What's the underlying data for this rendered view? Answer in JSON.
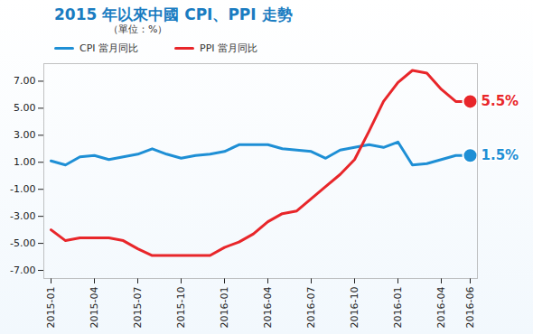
{
  "chart_data": {
    "type": "line",
    "title": "2015 年以來中國 CPI、PPI 走勢",
    "subtitle": "（單位：%）",
    "categories": [
      "2015-01",
      null,
      null,
      "2015-04",
      null,
      null,
      "2015-07",
      null,
      null,
      "2015-10",
      null,
      null,
      "2016-01",
      null,
      null,
      "2016-04",
      null,
      null,
      "2016-07",
      null,
      null,
      "2016-10",
      null,
      null,
      "2016-01",
      null,
      null,
      "2016-04",
      null,
      "2016-06"
    ],
    "series": [
      {
        "name": "CPI 當月同比",
        "color": "#1e8fd5",
        "values": [
          1.1,
          0.8,
          1.4,
          1.5,
          1.2,
          1.4,
          1.6,
          2.0,
          1.6,
          1.3,
          1.5,
          1.6,
          1.8,
          2.3,
          2.3,
          2.3,
          2.0,
          1.9,
          1.8,
          1.3,
          1.9,
          2.1,
          2.3,
          2.1,
          2.5,
          0.8,
          0.9,
          1.2,
          1.5,
          1.5
        ]
      },
      {
        "name": "PPI 當月同比",
        "color": "#e8262a",
        "values": [
          -4.0,
          -4.8,
          -4.6,
          -4.6,
          -4.6,
          -4.8,
          -5.4,
          -5.9,
          -5.9,
          -5.9,
          -5.9,
          -5.9,
          -5.3,
          -4.9,
          -4.3,
          -3.4,
          -2.8,
          -2.6,
          -1.7,
          -0.8,
          0.1,
          1.2,
          3.3,
          5.5,
          6.9,
          7.8,
          7.6,
          6.4,
          5.5,
          5.5
        ]
      }
    ],
    "annotations": [
      {
        "text": "5.5%",
        "series": "PPI 當月同比"
      },
      {
        "text": "1.5%",
        "series": "CPI 當月同比"
      }
    ],
    "ylim": [
      -7.6,
      8.3
    ],
    "yticks": [
      {
        "value": -7,
        "label": "-7.00"
      },
      {
        "value": -5,
        "label": "-5.00"
      },
      {
        "value": -3,
        "label": "-3.00"
      },
      {
        "value": -1,
        "label": "-1.00"
      },
      {
        "value": 1,
        "label": "1.00"
      },
      {
        "value": 3,
        "label": "3.00"
      },
      {
        "value": 5,
        "label": "5.00"
      },
      {
        "value": 7,
        "label": "7.00"
      }
    ],
    "grid": false,
    "legend": "top-left"
  }
}
